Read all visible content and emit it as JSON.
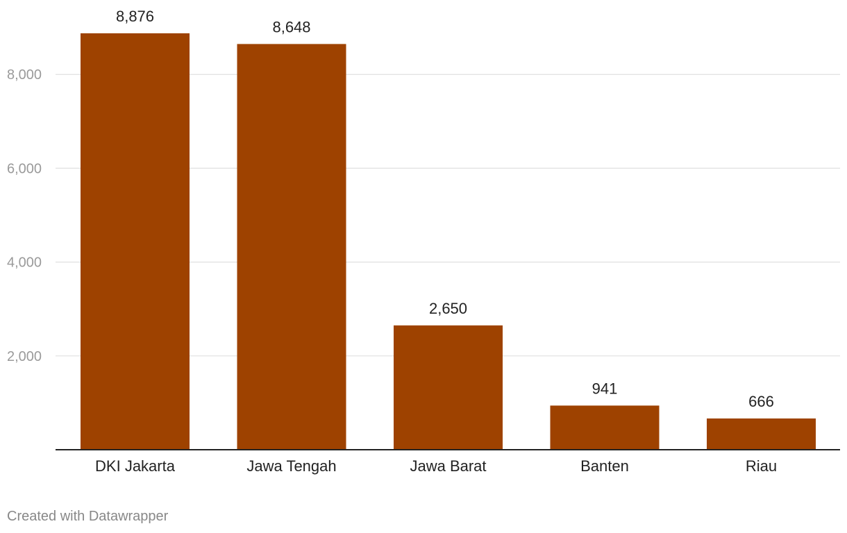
{
  "chart_data": {
    "type": "bar",
    "categories": [
      "DKI Jakarta",
      "Jawa Tengah",
      "Jawa Barat",
      "Banten",
      "Riau"
    ],
    "values": [
      8876,
      8648,
      2650,
      941,
      666
    ],
    "value_labels": [
      "8,876",
      "8,648",
      "2,650",
      "941",
      "666"
    ],
    "ylim": [
      0,
      8876
    ],
    "yticks": [
      2000,
      4000,
      6000,
      8000
    ],
    "ytick_labels": [
      "2,000",
      "4,000",
      "6,000",
      "8,000"
    ],
    "title": "",
    "xlabel": "",
    "ylabel": "",
    "grid": true,
    "bar_color": "#9e4200"
  },
  "footer": {
    "credit": "Created with Datawrapper"
  }
}
